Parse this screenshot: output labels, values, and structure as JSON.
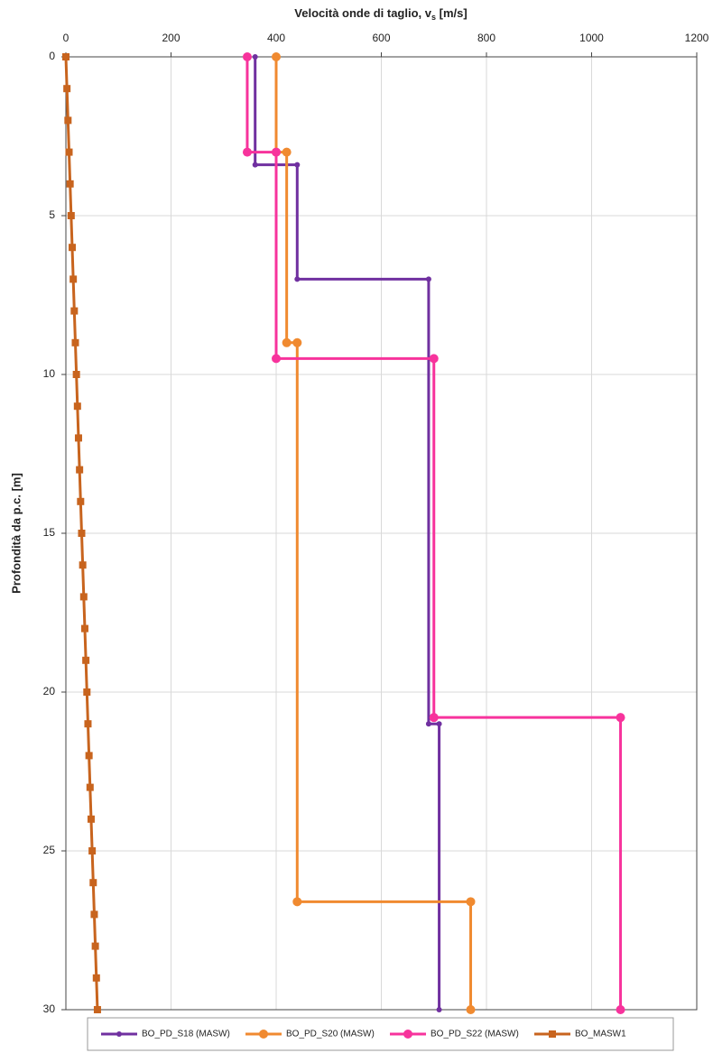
{
  "chart_data": {
    "type": "line",
    "xlabel": {
      "main": "Velocità onde di taglio, v",
      "sub": "s",
      "unit": " [m/s]"
    },
    "ylabel": "Profondità da p.c. [m]",
    "xlim": [
      0,
      1200
    ],
    "xticks": [
      0,
      200,
      400,
      600,
      800,
      1000,
      1200
    ],
    "x_axis_position": "top",
    "ylim": [
      0,
      30
    ],
    "yticks": [
      0,
      5,
      10,
      15,
      20,
      25,
      30
    ],
    "y_inverted": true,
    "grid": true,
    "legend": "bottom",
    "series": [
      {
        "name": "BO_PD_S18 (MASW)",
        "color": "#7030a0",
        "marker": "circle",
        "marker_size": 3,
        "x": [
          360,
          360,
          440,
          440,
          690,
          690,
          710,
          710
        ],
        "y": [
          0,
          3.4,
          3.4,
          7,
          7,
          21,
          21,
          30
        ]
      },
      {
        "name": "BO_PD_S20 (MASW)",
        "color": "#f08a30",
        "marker": "circle",
        "marker_size": 5,
        "x": [
          400,
          400,
          420,
          420,
          440,
          440,
          770,
          770
        ],
        "y": [
          0,
          3,
          3,
          9,
          9,
          26.6,
          26.6,
          30
        ]
      },
      {
        "name": "BO_PD_S22 (MASW)",
        "color": "#f7339c",
        "marker": "circle",
        "marker_size": 5,
        "x": [
          345,
          345,
          400,
          400,
          700,
          700,
          1055,
          1055
        ],
        "y": [
          0,
          3,
          3,
          9.5,
          9.5,
          20.8,
          20.8,
          30
        ]
      },
      {
        "name": "BO_MASW1",
        "color": "#c8641e",
        "marker": "square",
        "marker_size": 4,
        "x": [
          0,
          2,
          4,
          6,
          8,
          10,
          12,
          14,
          16,
          18,
          20,
          22,
          24,
          26,
          28,
          30,
          32,
          34,
          36,
          38,
          40,
          42,
          44,
          46,
          48,
          50,
          52,
          54,
          56,
          58,
          60
        ],
        "y": [
          0,
          1,
          2,
          3,
          4,
          5,
          6,
          7,
          8,
          9,
          10,
          11,
          12,
          13,
          14,
          15,
          16,
          17,
          18,
          19,
          20,
          21,
          22,
          23,
          24,
          25,
          26,
          27,
          28,
          29,
          30
        ]
      }
    ]
  }
}
